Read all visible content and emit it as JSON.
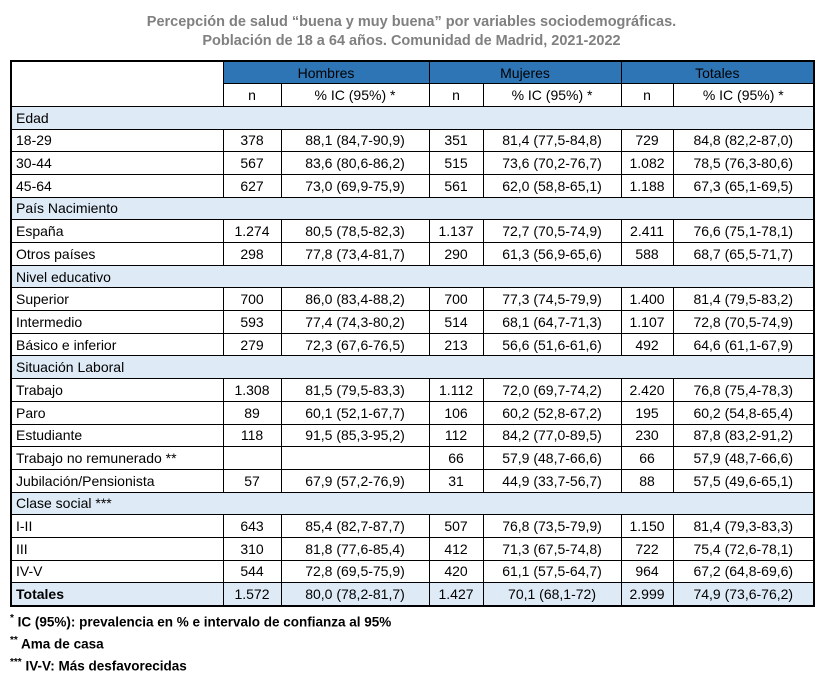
{
  "title": {
    "line1": "Percepción de salud “buena y muy buena” por variables sociodemográficas.",
    "line2": "Población de 18 a 64 años. Comunidad de Madrid, 2021-2022"
  },
  "colors": {
    "header_blue": "#2E75B6",
    "section_light_blue": "#DEEAF6",
    "title_gray": "#808080",
    "border": "#000000"
  },
  "chart_data": {
    "type": "table",
    "title": "Percepción de salud “buena y muy buena” por variables sociodemográficas. Población de 18 a 64 años. Comunidad de Madrid, 2021-2022",
    "column_groups": [
      "Hombres",
      "Mujeres",
      "Totales"
    ],
    "sub_headers": [
      "n",
      "% IC (95%) *"
    ],
    "sections": [
      {
        "label": "Edad",
        "rows": [
          {
            "label": "18-29",
            "values": [
              "378",
              "88,1 (84,7-90,9)",
              "351",
              "81,4 (77,5-84,8)",
              "729",
              "84,8 (82,2-87,0)"
            ]
          },
          {
            "label": "30-44",
            "values": [
              "567",
              "83,6 (80,6-86,2)",
              "515",
              "73,6 (70,2-76,7)",
              "1.082",
              "78,5 (76,3-80,6)"
            ]
          },
          {
            "label": "45-64",
            "values": [
              "627",
              "73,0 (69,9-75,9)",
              "561",
              "62,0 (58,8-65,1)",
              "1.188",
              "67,3 (65,1-69,5)"
            ]
          }
        ]
      },
      {
        "label": "País Nacimiento",
        "rows": [
          {
            "label": "España",
            "values": [
              "1.274",
              "80,5 (78,5-82,3)",
              "1.137",
              "72,7 (70,5-74,9)",
              "2.411",
              "76,6 (75,1-78,1)"
            ]
          },
          {
            "label": "Otros países",
            "values": [
              "298",
              "77,8 (73,4-81,7)",
              "290",
              "61,3 (56,9-65,6)",
              "588",
              "68,7 (65,5-71,7)"
            ]
          }
        ]
      },
      {
        "label": "Nivel educativo",
        "rows": [
          {
            "label": "Superior",
            "values": [
              "700",
              "86,0 (83,4-88,2)",
              "700",
              "77,3 (74,5-79,9)",
              "1.400",
              "81,4 (79,5-83,2)"
            ]
          },
          {
            "label": "Intermedio",
            "values": [
              "593",
              "77,4 (74,3-80,2)",
              "514",
              "68,1 (64,7-71,3)",
              "1.107",
              "72,8 (70,5-74,9)"
            ]
          },
          {
            "label": "Básico e inferior",
            "values": [
              "279",
              "72,3 (67,6-76,5)",
              "213",
              "56,6 (51,6-61,6)",
              "492",
              "64,6 (61,1-67,9)"
            ]
          }
        ]
      },
      {
        "label": "Situación Laboral",
        "rows": [
          {
            "label": "Trabajo",
            "values": [
              "1.308",
              "81,5 (79,5-83,3)",
              "1.112",
              "72,0 (69,7-74,2)",
              "2.420",
              "76,8 (75,4-78,3)"
            ]
          },
          {
            "label": "Paro",
            "values": [
              "89",
              "60,1 (52,1-67,7)",
              "106",
              "60,2 (52,8-67,2)",
              "195",
              "60,2 (54,8-65,4)"
            ]
          },
          {
            "label": "Estudiante",
            "values": [
              "118",
              "91,5 (85,3-95,2)",
              "112",
              "84,2 (77,0-89,5)",
              "230",
              "87,8 (83,2-91,2)"
            ]
          },
          {
            "label": "Trabajo no remunerado **",
            "values": [
              "",
              "",
              "66",
              "57,9 (48,7-66,6)",
              "66",
              "57,9 (48,7-66,6)"
            ]
          },
          {
            "label": "Jubilación/Pensionista",
            "values": [
              "57",
              "67,9 (57,2-76,9)",
              "31",
              "44,9 (33,7-56,7)",
              "88",
              "57,5 (49,6-65,1)"
            ]
          }
        ]
      },
      {
        "label": "Clase social ***",
        "rows": [
          {
            "label": "I-II",
            "values": [
              "643",
              "85,4 (82,7-87,7)",
              "507",
              "76,8 (73,5-79,9)",
              "1.150",
              "81,4 (79,3-83,3)"
            ]
          },
          {
            "label": "III",
            "values": [
              "310",
              "81,8 (77,6-85,4)",
              "412",
              "71,3 (67,5-74,8)",
              "722",
              "75,4 (72,6-78,1)"
            ]
          },
          {
            "label": "IV-V",
            "values": [
              "544",
              "72,8 (69,5-75,9)",
              "420",
              "61,1 (57,5-64,7)",
              "964",
              "67,2 (64,8-69,6)"
            ]
          }
        ]
      }
    ],
    "totals_row": {
      "label": "Totales",
      "values": [
        "1.572",
        "80,0 (78,2-81,7)",
        "1.427",
        "70,1 (68,1-72)",
        "2.999",
        "74,9 (73,6-76,2)"
      ]
    },
    "footnotes": [
      {
        "marker": "*",
        "text": "IC (95%): prevalencia en % e intervalo de confianza al 95%"
      },
      {
        "marker": "**",
        "text": "Ama de casa"
      },
      {
        "marker": "***",
        "text": "IV-V: Más desfavorecidas"
      }
    ]
  }
}
